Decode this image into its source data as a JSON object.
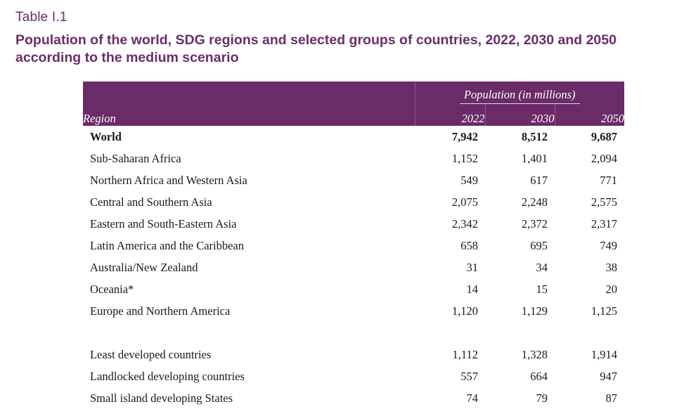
{
  "table_label": "Table I.1",
  "title": "Population of the world, SDG regions and selected groups of countries, 2022, 2030 and 2050 according to the medium scenario",
  "header": {
    "region_label": "Region",
    "group_label": "Population (in millions)",
    "years": [
      "2022",
      "2030",
      "2050"
    ]
  },
  "rows": [
    {
      "region": "World",
      "values": [
        "7,942",
        "8,512",
        "9,687"
      ]
    },
    {
      "region": "Sub-Saharan Africa",
      "values": [
        "1,152",
        "1,401",
        "2,094"
      ]
    },
    {
      "region": "Northern Africa and Western Asia",
      "values": [
        "549",
        "617",
        "771"
      ]
    },
    {
      "region": "Central and Southern Asia",
      "values": [
        "2,075",
        "2,248",
        "2,575"
      ]
    },
    {
      "region": "Eastern and South-Eastern Asia",
      "values": [
        "2,342",
        "2,372",
        "2,317"
      ]
    },
    {
      "region": "Latin America and the Caribbean",
      "values": [
        "658",
        "695",
        "749"
      ]
    },
    {
      "region": "Australia/New Zealand",
      "values": [
        "31",
        "34",
        "38"
      ]
    },
    {
      "region": "Oceania*",
      "values": [
        "14",
        "15",
        "20"
      ]
    },
    {
      "region": "Europe and Northern America",
      "values": [
        "1,120",
        "1,129",
        "1,125"
      ]
    }
  ],
  "group_rows": [
    {
      "region": "Least developed countries",
      "values": [
        "1,112",
        "1,328",
        "1,914"
      ]
    },
    {
      "region": "Landlocked developing countries",
      "values": [
        "557",
        "664",
        "947"
      ]
    },
    {
      "region": "Small island developing States",
      "values": [
        "74",
        "79",
        "87"
      ]
    }
  ],
  "colors": {
    "header_bg": "#6b2a68",
    "title_text": "#6b2d6b"
  }
}
